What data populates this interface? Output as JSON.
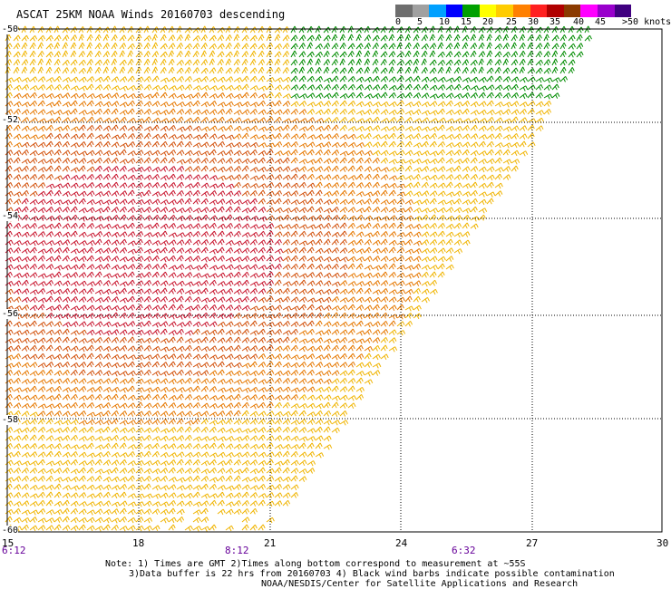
{
  "title": "ASCAT 25KM NOAA Winds 20160703 descending",
  "colorbar": {
    "colors": [
      "#6e6e6e",
      "#a0a0a0",
      "#00a0ff",
      "#0000ff",
      "#00a000",
      "#ffff00",
      "#ffcc00",
      "#ff8000",
      "#ff2020",
      "#b00000",
      "#8b3a00",
      "#ff00ff",
      "#9900cc",
      "#400080"
    ],
    "labels": [
      "0",
      "5",
      "10",
      "15",
      "20",
      "25",
      "30",
      "35",
      "40",
      "45",
      ">50 knots"
    ]
  },
  "map": {
    "lat_labels": [
      "-50",
      "-52",
      "-54",
      "-56",
      "-58",
      "-60"
    ],
    "lon_labels": [
      "15",
      "18",
      "21",
      "24",
      "27",
      "30"
    ],
    "time_labels": [
      "6:12",
      "8:12",
      "6:32"
    ],
    "swath_colors": {
      "yellow": "#ffd200",
      "gold": "#f0b400",
      "orange": "#e67800",
      "darkorange": "#d2500a",
      "red": "#c8142d",
      "green": "#008c00"
    }
  },
  "notes": {
    "line1": "Note: 1) Times are GMT 2)Times along bottom correspond to measurement at ~55S",
    "line2": "3)Data buffer is 22 hrs from 20160703 4) Black wind barbs indicate possible contamination",
    "line3": "NOAA/NESDIS/Center for Satellite Applications and Research"
  }
}
